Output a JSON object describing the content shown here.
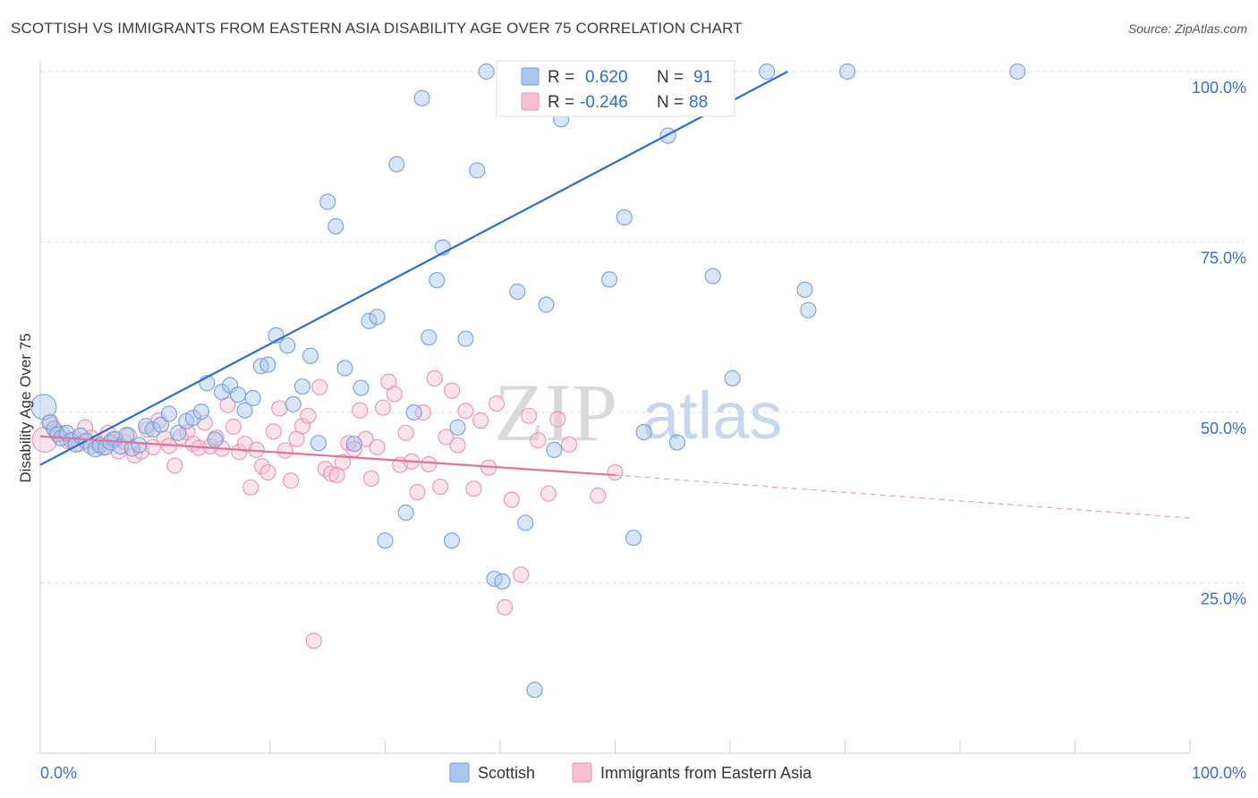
{
  "title": "SCOTTISH VS IMMIGRANTS FROM EASTERN ASIA DISABILITY AGE OVER 75 CORRELATION CHART",
  "source": "Source: ZipAtlas.com",
  "watermark": {
    "zip": "ZIP",
    "atlas": "atlas"
  },
  "colors": {
    "blue_fill": "#a9c6ee",
    "blue_stroke": "#6f9fdc",
    "blue_line": "#2a6fcf",
    "pink_fill": "#f7c0d2",
    "pink_stroke": "#ec8fae",
    "pink_line": "#e5709a",
    "grid": "#dddddd",
    "tick_text": "#3a6fc4"
  },
  "legend": {
    "r_label": "R =",
    "n_label": "N =",
    "scottish_r": "0.620",
    "scottish_n": "91",
    "asia_r": "-0.246",
    "asia_n": "88"
  },
  "chart_data": {
    "type": "scatter",
    "title": "SCOTTISH VS IMMIGRANTS FROM EASTERN ASIA DISABILITY AGE OVER 75 CORRELATION CHART",
    "xlabel": "",
    "ylabel": "Disability Age Over 75",
    "xlim": [
      0,
      100
    ],
    "ylim": [
      0,
      100
    ],
    "x_tick_labels": [
      "0.0%",
      "100.0%"
    ],
    "y_tick_labels": [
      "25.0%",
      "50.0%",
      "75.0%",
      "100.0%"
    ],
    "y_ticks": [
      25,
      50,
      75,
      100
    ],
    "grid": true,
    "legend_position": "top-center",
    "series": [
      {
        "name": "Scottish",
        "color": "#6f9fdc",
        "r": 0.62,
        "n": 91,
        "trend": {
          "x": [
            0,
            65
          ],
          "y": [
            42.3,
            100
          ]
        },
        "points": [
          [
            0.3,
            50.8
          ],
          [
            0.8,
            48.5
          ],
          [
            1.2,
            47.6
          ],
          [
            1.5,
            46.8
          ],
          [
            1.8,
            46.2
          ],
          [
            2.3,
            47.0
          ],
          [
            2.7,
            45.9
          ],
          [
            3.1,
            45.3
          ],
          [
            3.5,
            46.6
          ],
          [
            4.0,
            45.8
          ],
          [
            4.4,
            45.0
          ],
          [
            4.8,
            44.6
          ],
          [
            5.2,
            45.2
          ],
          [
            5.7,
            44.9
          ],
          [
            6.1,
            45.6
          ],
          [
            6.5,
            46.1
          ],
          [
            7.0,
            45.0
          ],
          [
            7.5,
            46.7
          ],
          [
            8.0,
            44.7
          ],
          [
            8.6,
            45.2
          ],
          [
            9.2,
            48.0
          ],
          [
            9.8,
            47.5
          ],
          [
            10.5,
            48.2
          ],
          [
            11.2,
            49.8
          ],
          [
            12.0,
            47.0
          ],
          [
            12.7,
            48.7
          ],
          [
            13.3,
            49.2
          ],
          [
            14.0,
            50.1
          ],
          [
            14.5,
            54.3
          ],
          [
            15.2,
            46.0
          ],
          [
            15.8,
            53.0
          ],
          [
            16.5,
            54.0
          ],
          [
            17.2,
            52.6
          ],
          [
            17.8,
            50.3
          ],
          [
            18.5,
            52.1
          ],
          [
            19.2,
            56.8
          ],
          [
            19.8,
            57.0
          ],
          [
            20.5,
            61.3
          ],
          [
            21.5,
            59.8
          ],
          [
            22.0,
            51.2
          ],
          [
            22.8,
            53.8
          ],
          [
            23.5,
            58.3
          ],
          [
            24.2,
            45.5
          ],
          [
            25.0,
            80.9
          ],
          [
            25.7,
            77.3
          ],
          [
            26.5,
            56.5
          ],
          [
            27.3,
            45.4
          ],
          [
            27.9,
            53.6
          ],
          [
            28.6,
            63.4
          ],
          [
            29.3,
            64.0
          ],
          [
            30.0,
            31.2
          ],
          [
            31.0,
            86.4
          ],
          [
            31.8,
            35.3
          ],
          [
            32.5,
            50.0
          ],
          [
            33.2,
            96.1
          ],
          [
            33.8,
            61.0
          ],
          [
            34.5,
            69.4
          ],
          [
            35.0,
            74.2
          ],
          [
            35.8,
            31.2
          ],
          [
            36.3,
            47.8
          ],
          [
            37.0,
            60.8
          ],
          [
            38.0,
            85.5
          ],
          [
            38.8,
            100.0
          ],
          [
            39.5,
            25.6
          ],
          [
            40.2,
            25.2
          ],
          [
            40.8,
            100.0
          ],
          [
            41.5,
            67.7
          ],
          [
            42.2,
            33.8
          ],
          [
            43.0,
            9.3
          ],
          [
            44.0,
            65.8
          ],
          [
            44.7,
            44.5
          ],
          [
            45.3,
            93.0
          ],
          [
            46.0,
            100.0
          ],
          [
            47.0,
            100.0
          ],
          [
            47.6,
            95.0
          ],
          [
            48.5,
            100.0
          ],
          [
            49.5,
            69.5
          ],
          [
            50.8,
            78.6
          ],
          [
            51.6,
            31.6
          ],
          [
            52.5,
            47.1
          ],
          [
            53.0,
            100.0
          ],
          [
            54.0,
            100.0
          ],
          [
            54.6,
            90.6
          ],
          [
            55.4,
            45.6
          ],
          [
            58.5,
            70.0
          ],
          [
            60.2,
            55.0
          ],
          [
            63.2,
            100.0
          ],
          [
            66.5,
            68.0
          ],
          [
            66.8,
            65.0
          ],
          [
            70.2,
            100.0
          ],
          [
            85.0,
            100.0
          ]
        ]
      },
      {
        "name": "Immigrants from Eastern Asia",
        "color": "#ec8fae",
        "r": -0.246,
        "n": 88,
        "trend": {
          "x": [
            0,
            50
          ],
          "y": [
            46.5,
            40.8
          ]
        },
        "trend_dashed": {
          "x": [
            50,
            100
          ],
          "y": [
            40.8,
            34.5
          ]
        },
        "points": [
          [
            0.4,
            46.0
          ],
          [
            0.9,
            48.6
          ],
          [
            1.4,
            47.2
          ],
          [
            1.9,
            46.9
          ],
          [
            2.4,
            45.8
          ],
          [
            2.9,
            46.1
          ],
          [
            3.4,
            45.4
          ],
          [
            3.9,
            47.8
          ],
          [
            4.4,
            46.3
          ],
          [
            4.9,
            45.5
          ],
          [
            5.4,
            44.8
          ],
          [
            5.9,
            47.0
          ],
          [
            6.3,
            46.0
          ],
          [
            6.8,
            44.3
          ],
          [
            7.3,
            45.7
          ],
          [
            7.7,
            46.6
          ],
          [
            8.2,
            43.7
          ],
          [
            8.8,
            44.3
          ],
          [
            9.3,
            47.5
          ],
          [
            9.8,
            44.9
          ],
          [
            10.3,
            48.8
          ],
          [
            10.8,
            46.2
          ],
          [
            11.2,
            45.1
          ],
          [
            11.7,
            42.2
          ],
          [
            12.2,
            46.4
          ],
          [
            12.8,
            47.1
          ],
          [
            13.3,
            45.4
          ],
          [
            13.8,
            44.8
          ],
          [
            14.3,
            48.5
          ],
          [
            14.8,
            45.0
          ],
          [
            15.3,
            46.3
          ],
          [
            15.8,
            44.7
          ],
          [
            16.3,
            51.1
          ],
          [
            16.8,
            47.9
          ],
          [
            17.3,
            44.2
          ],
          [
            17.8,
            45.4
          ],
          [
            18.3,
            39.0
          ],
          [
            18.8,
            44.5
          ],
          [
            19.3,
            42.1
          ],
          [
            19.8,
            41.2
          ],
          [
            20.3,
            47.2
          ],
          [
            20.8,
            50.6
          ],
          [
            21.3,
            44.4
          ],
          [
            21.8,
            40.0
          ],
          [
            22.3,
            46.1
          ],
          [
            22.8,
            48.0
          ],
          [
            23.3,
            49.5
          ],
          [
            23.8,
            16.5
          ],
          [
            24.3,
            53.7
          ],
          [
            24.8,
            41.7
          ],
          [
            25.3,
            41.0
          ],
          [
            25.8,
            40.8
          ],
          [
            26.3,
            42.7
          ],
          [
            26.8,
            45.5
          ],
          [
            27.3,
            44.6
          ],
          [
            27.8,
            50.3
          ],
          [
            28.3,
            46.1
          ],
          [
            28.8,
            40.3
          ],
          [
            29.3,
            44.9
          ],
          [
            29.8,
            50.7
          ],
          [
            30.3,
            54.5
          ],
          [
            30.8,
            52.7
          ],
          [
            31.3,
            42.3
          ],
          [
            31.8,
            47.0
          ],
          [
            32.3,
            42.8
          ],
          [
            32.8,
            38.3
          ],
          [
            33.3,
            50.0
          ],
          [
            33.8,
            42.4
          ],
          [
            34.3,
            55.0
          ],
          [
            34.8,
            39.1
          ],
          [
            35.3,
            46.4
          ],
          [
            35.8,
            53.2
          ],
          [
            36.3,
            45.2
          ],
          [
            37.0,
            50.2
          ],
          [
            37.7,
            38.8
          ],
          [
            38.3,
            48.8
          ],
          [
            39.0,
            41.9
          ],
          [
            39.7,
            51.3
          ],
          [
            40.4,
            21.4
          ],
          [
            41.0,
            37.2
          ],
          [
            41.8,
            26.2
          ],
          [
            42.5,
            49.5
          ],
          [
            43.3,
            45.9
          ],
          [
            44.2,
            38.1
          ],
          [
            45.0,
            49.0
          ],
          [
            46.0,
            45.3
          ],
          [
            48.5,
            37.8
          ],
          [
            50.0,
            41.2
          ]
        ]
      }
    ]
  },
  "bottom_legend": {
    "scottish": "Scottish",
    "asia": "Immigrants from Eastern Asia"
  }
}
